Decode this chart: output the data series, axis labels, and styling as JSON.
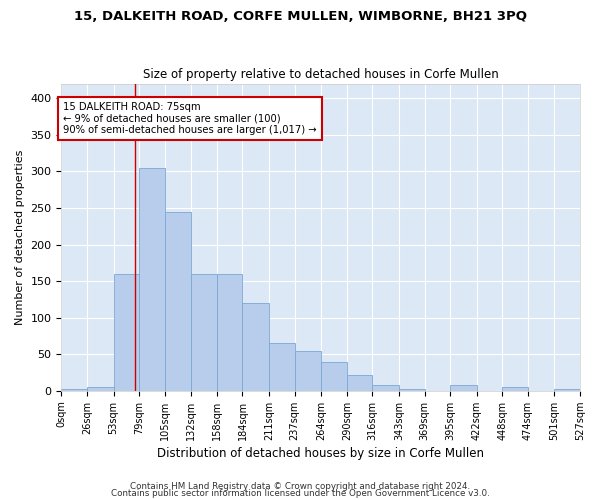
{
  "title1": "15, DALKEITH ROAD, CORFE MULLEN, WIMBORNE, BH21 3PQ",
  "title2": "Size of property relative to detached houses in Corfe Mullen",
  "xlabel": "Distribution of detached houses by size in Corfe Mullen",
  "ylabel": "Number of detached properties",
  "bar_color": "#b8cceb",
  "bar_edge_color": "#7aa8d4",
  "bg_color": "#dce8f5",
  "grid_color": "white",
  "ref_line_x": 75,
  "ref_line_color": "#cc0000",
  "annotation_text": "15 DALKEITH ROAD: 75sqm\n← 9% of detached houses are smaller (100)\n90% of semi-detached houses are larger (1,017) →",
  "annotation_box_color": "white",
  "annotation_box_edge": "#cc0000",
  "bin_edges": [
    0,
    26,
    53,
    79,
    105,
    132,
    158,
    184,
    211,
    237,
    264,
    290,
    316,
    343,
    369,
    395,
    422,
    448,
    474,
    501,
    527
  ],
  "bar_heights": [
    2,
    5,
    160,
    305,
    245,
    160,
    160,
    120,
    65,
    55,
    40,
    22,
    8,
    2,
    0,
    8,
    0,
    5,
    0,
    2
  ],
  "ylim": [
    0,
    420
  ],
  "yticks": [
    0,
    50,
    100,
    150,
    200,
    250,
    300,
    350,
    400
  ],
  "footer1": "Contains HM Land Registry data © Crown copyright and database right 2024.",
  "footer2": "Contains public sector information licensed under the Open Government Licence v3.0."
}
